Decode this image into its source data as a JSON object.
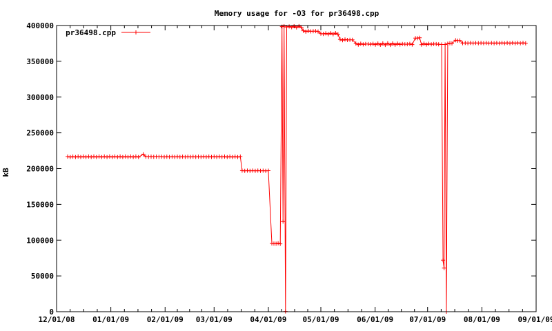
{
  "window": {
    "background": "#ffffff"
  },
  "chart_data": {
    "type": "line",
    "title": "Memory usage for -O3 for pr36498.cpp",
    "xlabel": "",
    "ylabel": "kB",
    "ylim": [
      0,
      400000
    ],
    "grid": false,
    "legend_position": "top-left-inside",
    "marker": "plus",
    "series_color": "#ff0000",
    "axis_color": "#000000",
    "y_ticks": [
      {
        "value": 0,
        "label": "0"
      },
      {
        "value": 50000,
        "label": "50000"
      },
      {
        "value": 100000,
        "label": "100000"
      },
      {
        "value": 150000,
        "label": "150000"
      },
      {
        "value": 200000,
        "label": "200000"
      },
      {
        "value": 250000,
        "label": "250000"
      },
      {
        "value": 300000,
        "label": "300000"
      },
      {
        "value": 350000,
        "label": "350000"
      },
      {
        "value": 400000,
        "label": "400000"
      }
    ],
    "x_total_days": 274,
    "x_minor_ticks_per_interval": 3,
    "x_ticks": [
      {
        "day": 0,
        "label": "12/01/08"
      },
      {
        "day": 31,
        "label": "01/01/09"
      },
      {
        "day": 62,
        "label": "02/01/09"
      },
      {
        "day": 90,
        "label": "03/01/09"
      },
      {
        "day": 121,
        "label": "04/01/09"
      },
      {
        "day": 151,
        "label": "05/01/09"
      },
      {
        "day": 182,
        "label": "06/01/09"
      },
      {
        "day": 212,
        "label": "07/01/09"
      },
      {
        "day": 243,
        "label": "08/01/09"
      },
      {
        "day": 274,
        "label": "09/01/09"
      }
    ],
    "series": [
      {
        "name": "pr36498.cpp",
        "color": "#ff0000",
        "segments": [
          {
            "from": 6.3,
            "to": 48,
            "value": 216500,
            "step": 1.5,
            "noise": 500
          },
          {
            "from": 49.5,
            "to": 49.5,
            "value": 220000
          },
          {
            "from": 51,
            "to": 105,
            "value": 216500,
            "step": 1.5,
            "noise": 500
          },
          {
            "from": 106,
            "to": 122,
            "value": 197000,
            "step": 1.5,
            "noise": 400
          },
          {
            "from": 123,
            "to": 128,
            "value": 95200,
            "step": 1.2,
            "noise": 400
          },
          {
            "from": 128.8,
            "to": 128.8,
            "value": 398500
          },
          {
            "from": 129.4,
            "to": 129.4,
            "value": 126000
          },
          {
            "from": 130,
            "to": 130,
            "value": 399000
          },
          {
            "from": 130.8,
            "to": 130.8,
            "value": 400
          },
          {
            "from": 131.5,
            "to": 140,
            "value": 398200,
            "step": 1.4,
            "noise": 1000
          },
          {
            "from": 141,
            "to": 150,
            "value": 392000,
            "step": 1.4,
            "noise": 1000
          },
          {
            "from": 151,
            "to": 161,
            "value": 388500,
            "step": 1.4,
            "noise": 900
          },
          {
            "from": 162,
            "to": 170,
            "value": 380000,
            "step": 1.4,
            "noise": 800
          },
          {
            "from": 171,
            "to": 204,
            "value": 374000,
            "step": 1.4,
            "noise": 1100
          },
          {
            "from": 205,
            "to": 207.5,
            "value": 382500,
            "step": 1.2,
            "noise": 500
          },
          {
            "from": 208.5,
            "to": 219,
            "value": 374000,
            "step": 1.4,
            "noise": 900
          },
          {
            "from": 220,
            "to": 220,
            "value": 373500
          },
          {
            "from": 220.8,
            "to": 220.8,
            "value": 72000
          },
          {
            "from": 221.4,
            "to": 221.4,
            "value": 61000
          },
          {
            "from": 222,
            "to": 222,
            "value": 373500
          },
          {
            "from": 222.7,
            "to": 222.7,
            "value": 0
          },
          {
            "from": 223.5,
            "to": 227,
            "value": 375000,
            "step": 1.2,
            "noise": 500
          },
          {
            "from": 228,
            "to": 231,
            "value": 379000,
            "step": 1.2,
            "noise": 400
          },
          {
            "from": 232,
            "to": 269,
            "value": 375500,
            "step": 1.5,
            "noise": 700
          }
        ]
      }
    ]
  },
  "legend": {
    "label": "pr36498.cpp"
  }
}
